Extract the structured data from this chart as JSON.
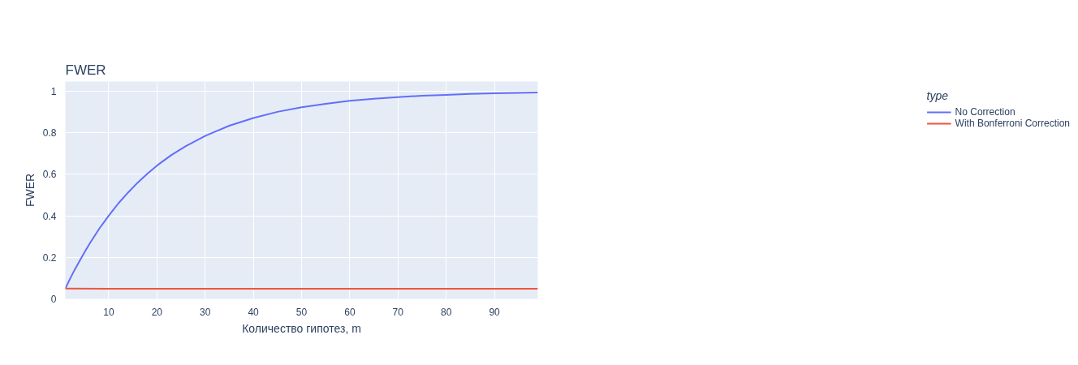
{
  "chart_data": {
    "type": "line",
    "title": "FWER",
    "xlabel": "Количество гипотез, m",
    "ylabel": "FWER",
    "legend_title": "type",
    "x": [
      1,
      2,
      3,
      4,
      5,
      6,
      8,
      10,
      12,
      14,
      16,
      18,
      20,
      23,
      26,
      30,
      35,
      40,
      45,
      50,
      55,
      60,
      65,
      70,
      75,
      80,
      85,
      90,
      95,
      99
    ],
    "series": [
      {
        "name": "No Correction",
        "color": "#636efa",
        "values": [
          0.05,
          0.098,
          0.143,
          0.185,
          0.226,
          0.265,
          0.337,
          0.401,
          0.46,
          0.512,
          0.56,
          0.603,
          0.642,
          0.693,
          0.736,
          0.785,
          0.834,
          0.871,
          0.901,
          0.923,
          0.94,
          0.954,
          0.964,
          0.972,
          0.979,
          0.983,
          0.987,
          0.99,
          0.992,
          0.994
        ]
      },
      {
        "name": "With Bonferroni Correction",
        "color": "#ef553b",
        "x": [
          1,
          10,
          99
        ],
        "values": [
          0.05,
          0.049,
          0.049
        ]
      }
    ],
    "xlim": [
      1,
      99
    ],
    "ylim": [
      0,
      1.047
    ],
    "xticks": [
      10,
      20,
      30,
      40,
      50,
      60,
      70,
      80,
      90
    ],
    "yticks": [
      0,
      0.2,
      0.4,
      0.6,
      0.8,
      1
    ],
    "grid": true,
    "legend": "right"
  }
}
